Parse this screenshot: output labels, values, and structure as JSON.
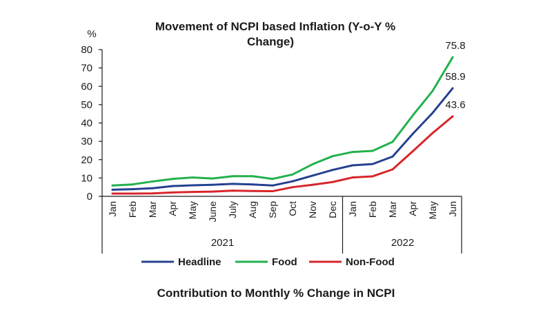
{
  "chart_data": {
    "type": "line",
    "title": "Movement of NCPI based Inflation (Y-o-Y % Change)",
    "title_lines": [
      "Movement of NCPI based Inflation (Y-o-Y %",
      "Change)"
    ],
    "ylabel": "%",
    "xlabel": "",
    "ylim": [
      0,
      80
    ],
    "yticks": [
      0,
      10,
      20,
      30,
      40,
      50,
      60,
      70,
      80
    ],
    "grid": false,
    "categories": [
      "Jan",
      "Feb",
      "Mar",
      "Apr",
      "May",
      "June",
      "July",
      "Aug",
      "Sep",
      "Oct",
      "Nov",
      "Dec",
      "Jan",
      "Feb",
      "Mar",
      "Apr",
      "May",
      "Jun"
    ],
    "year_groups": [
      {
        "label": "2021",
        "count": 12
      },
      {
        "label": "2022",
        "count": 6
      }
    ],
    "series": [
      {
        "name": "Headline",
        "color": "#25408f",
        "values": [
          3.6,
          3.9,
          4.4,
          5.6,
          6.0,
          6.3,
          6.8,
          6.5,
          5.9,
          8.2,
          11.3,
          14.4,
          16.9,
          17.6,
          21.7,
          34.0,
          45.5,
          58.9
        ],
        "end_label": "58.9"
      },
      {
        "name": "Food",
        "color": "#22b14c",
        "values": [
          5.9,
          6.5,
          8.1,
          9.5,
          10.3,
          9.7,
          11.0,
          11.0,
          9.5,
          11.9,
          17.5,
          21.9,
          24.2,
          24.8,
          29.7,
          44.0,
          57.5,
          75.8
        ],
        "end_label": "75.8"
      },
      {
        "name": "Non-Food",
        "color": "#d7262b",
        "values": [
          1.5,
          1.5,
          1.6,
          2.1,
          2.4,
          2.6,
          3.1,
          2.9,
          2.8,
          5.0,
          6.3,
          7.8,
          10.3,
          10.9,
          14.7,
          24.5,
          34.5,
          43.6
        ],
        "end_label": "43.6"
      }
    ],
    "legend": {
      "placement": "bottom",
      "entries": [
        "Headline",
        "Food",
        "Non-Food"
      ]
    },
    "footer_caption": "Contribution to Monthly % Change in NCPI"
  }
}
